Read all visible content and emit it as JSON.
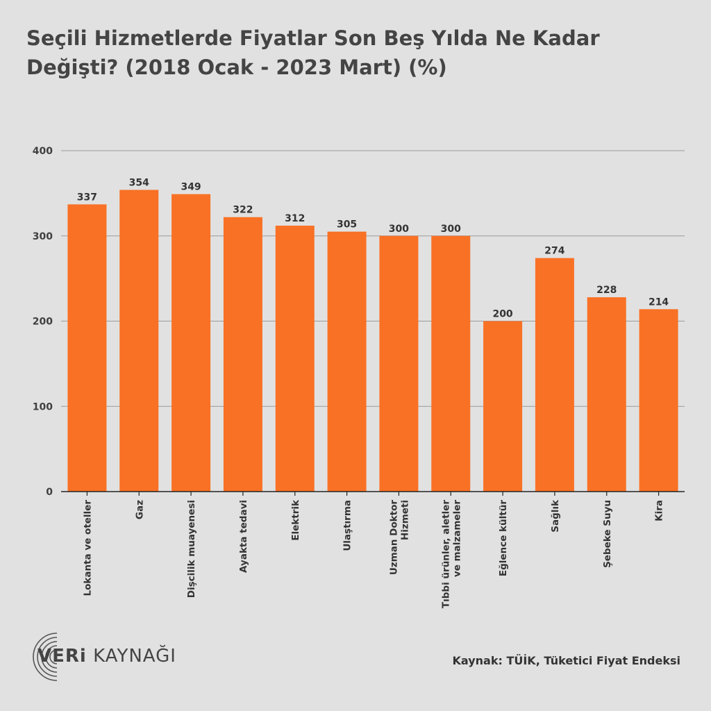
{
  "title": "Seçili Hizmetlerde Fiyatlar Son Beş Yılda Ne Kadar Değişti? (2018 Ocak - 2023 Mart) (%)",
  "source": "Kaynak: TÜİK, Tüketici Fiyat Endeksi",
  "logo": {
    "part1": "VERi",
    "part2": " KAYNAĞI"
  },
  "colors": {
    "bar": "#f97125",
    "background": "#e1e1e1",
    "grid": "#9a9a9a",
    "text": "#3f3f3f"
  },
  "chart_data": {
    "type": "bar",
    "title": "Seçili Hizmetlerde Fiyatlar Son Beş Yılda Ne Kadar Değişti? (2018 Ocak - 2023 Mart) (%)",
    "categories": [
      [
        "Lokanta ve oteller"
      ],
      [
        "Gaz"
      ],
      [
        "Dişcilik muayenesi"
      ],
      [
        "Ayakta tedavi"
      ],
      [
        "Elektrik"
      ],
      [
        "Ulaştırma"
      ],
      [
        "Uzman Doktor",
        "Hizmeti"
      ],
      [
        "Tıbbi ürünler, aletler",
        "ve malzameler"
      ],
      [
        "Eğlence kültür"
      ],
      [
        "Sağlık"
      ],
      [
        "Şebeke Suyu"
      ],
      [
        "Kira"
      ]
    ],
    "values": [
      337,
      354,
      349,
      322,
      312,
      305,
      300,
      300,
      200,
      274,
      228,
      214
    ],
    "ylim": [
      0,
      400
    ],
    "yticks": [
      0,
      100,
      200,
      300,
      400
    ],
    "grid": true,
    "xlabel": "",
    "ylabel": ""
  }
}
